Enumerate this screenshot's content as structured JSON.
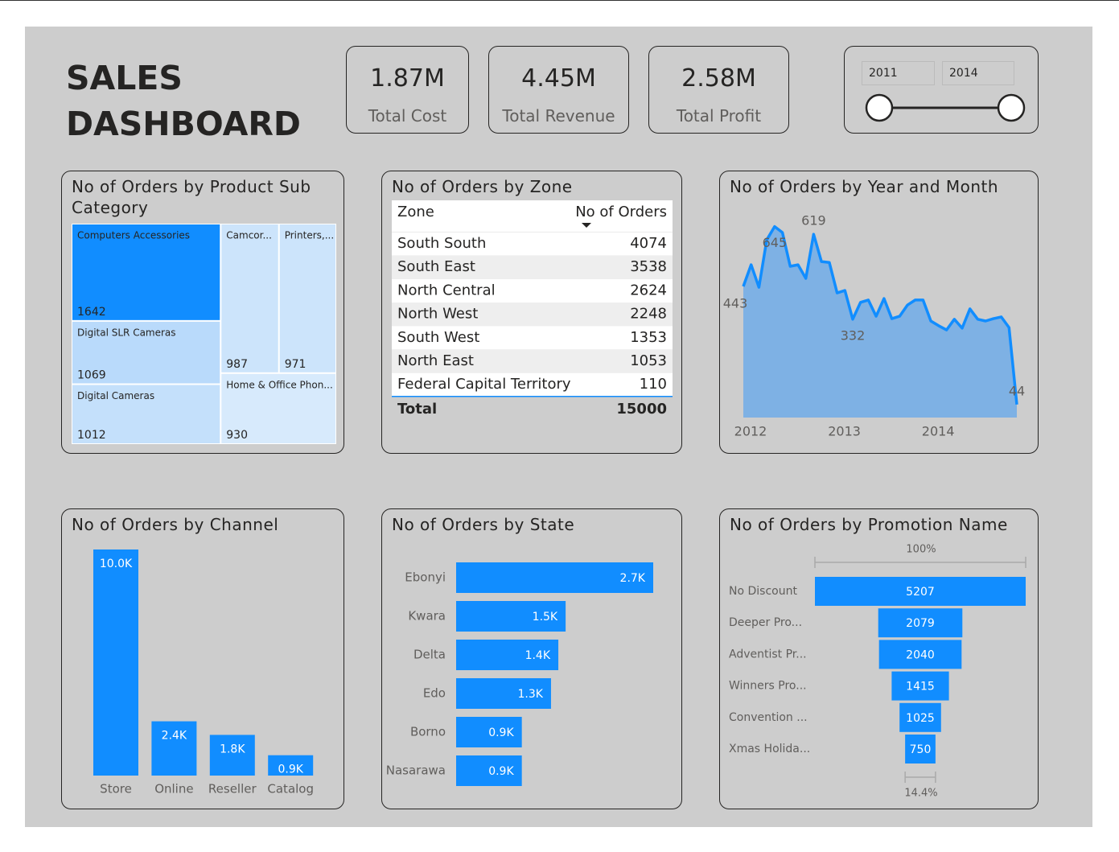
{
  "header": {
    "title": "SALES DASHBOARD"
  },
  "kpis": [
    {
      "value": "1.87M",
      "label": "Total Cost"
    },
    {
      "value": "4.45M",
      "label": "Total Revenue"
    },
    {
      "value": "2.58M",
      "label": "Total Profit"
    }
  ],
  "slicer": {
    "start": 2011,
    "end": 2014
  },
  "table": {
    "title": "No of Orders by Zone",
    "columns": [
      "Zone",
      "No of Orders"
    ],
    "rows": [
      [
        "South South",
        4074
      ],
      [
        "South East",
        3538
      ],
      [
        "North Central",
        2624
      ],
      [
        "North West",
        2248
      ],
      [
        "South West",
        1353
      ],
      [
        "North East",
        1053
      ],
      [
        "Federal Capital Territory",
        110
      ]
    ],
    "total": [
      "Total",
      15000
    ]
  },
  "chart_data": [
    {
      "type": "treemap",
      "title": "No of Orders by Product Sub Category",
      "categories": [
        "Computers Accessories",
        "Digital SLR Cameras",
        "Digital Cameras",
        "Camcor...",
        "Printers,...",
        "Home & Office Phon..."
      ],
      "values": [
        1642,
        1069,
        1012,
        987,
        971,
        930
      ],
      "colors": [
        "#118dff",
        "#b9dafb",
        "#c4e0fb",
        "#cce4fb",
        "#cce4fb",
        "#d7eafc"
      ]
    },
    {
      "type": "area",
      "title": "No of Orders by Year and Month",
      "categories": [
        "2012",
        null,
        null,
        null,
        null,
        null,
        null,
        null,
        null,
        null,
        null,
        null,
        "2013",
        null,
        null,
        null,
        null,
        null,
        null,
        null,
        null,
        null,
        null,
        null,
        "2014",
        null,
        null,
        null,
        null,
        null,
        null,
        null,
        null,
        null,
        null,
        null
      ],
      "values": [
        443,
        516,
        440,
        600,
        645,
        625,
        511,
        516,
        470,
        619,
        527,
        524,
        421,
        429,
        332,
        389,
        397,
        342,
        402,
        334,
        342,
        380,
        397,
        397,
        326,
        310,
        296,
        332,
        302,
        367,
        332,
        326,
        334,
        340,
        304,
        44
      ],
      "label_indices": [
        0,
        4,
        9,
        14,
        35
      ],
      "ylim": [
        0,
        730
      ],
      "color": "#118dff",
      "fill": "#7eb1e4"
    },
    {
      "type": "bar",
      "title": "No of Orders by Channel",
      "categories": [
        "Store",
        "Online",
        "Reseller",
        "Catalog"
      ],
      "values": [
        10000,
        2400,
        1800,
        900
      ],
      "value_labels": [
        "10.0K",
        "2.4K",
        "1.8K",
        "0.9K"
      ],
      "ylim": [
        0,
        10000
      ],
      "color": "#118dff"
    },
    {
      "type": "hbar",
      "title": "No of Orders by State",
      "categories": [
        "Ebonyi",
        "Kwara",
        "Delta",
        "Edo",
        "Borno",
        "Nasarawa"
      ],
      "values": [
        2700,
        1500,
        1400,
        1300,
        900,
        900
      ],
      "value_labels": [
        "2.7K",
        "1.5K",
        "1.4K",
        "1.3K",
        "0.9K",
        "0.9K"
      ],
      "xlim": [
        0,
        2700
      ],
      "color": "#118dff"
    },
    {
      "type": "funnel",
      "title": "No of Orders by Promotion Name",
      "categories": [
        "No Discount",
        "Deeper Pro...",
        "Adventist Pr...",
        "Winners Pro...",
        "Convention ...",
        "Xmas Holida..."
      ],
      "values": [
        5207,
        2079,
        2040,
        1415,
        1025,
        750
      ],
      "first_rate": {
        "value": 100,
        "label": "100%"
      },
      "last_rate": {
        "value": 14.4,
        "label": "14.4%"
      },
      "color": "#118dff"
    }
  ]
}
